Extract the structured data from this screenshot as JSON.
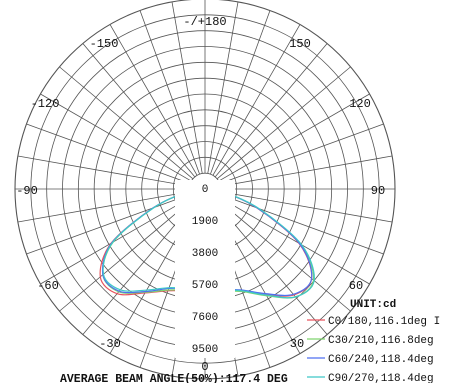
{
  "chart_data": {
    "type": "polar-line",
    "unit_label": "UNIT:cd",
    "angle_labels": [
      "-/+180",
      "-150",
      "150",
      "-120",
      "120",
      "-90",
      "90",
      "-60",
      "60",
      "-30",
      "30",
      "0"
    ],
    "radial_ticks": [
      "0",
      "1900",
      "3800",
      "5700",
      "7600",
      "9500"
    ],
    "radial_max": 11400,
    "footer": "AVERAGE BEAM ANGLE(50%):117.4 DEG",
    "colors": {
      "grid": "#555555",
      "text": "#111111"
    },
    "series": [
      {
        "name": "C0/180,116.1deg I",
        "color": "#e8545e",
        "points": [
          [
            0,
            6050
          ],
          [
            10,
            6200
          ],
          [
            20,
            6500
          ],
          [
            30,
            7200
          ],
          [
            40,
            8200
          ],
          [
            50,
            8200
          ],
          [
            60,
            6500
          ],
          [
            70,
            3300
          ],
          [
            80,
            1100
          ],
          [
            90,
            0
          ],
          [
            -90,
            0
          ],
          [
            -80,
            1100
          ],
          [
            -70,
            3300
          ],
          [
            -60,
            6500
          ],
          [
            -50,
            8350
          ],
          [
            -40,
            8300
          ],
          [
            -30,
            7300
          ],
          [
            -20,
            6500
          ],
          [
            -10,
            6200
          ],
          [
            0,
            6050
          ]
        ]
      },
      {
        "name": "C30/210,116.8deg",
        "color": "#7fd46f",
        "points": [
          [
            0,
            6000
          ],
          [
            10,
            6150
          ],
          [
            20,
            6450
          ],
          [
            30,
            7150
          ],
          [
            40,
            8050
          ],
          [
            50,
            8000
          ],
          [
            60,
            6350
          ],
          [
            70,
            3250
          ],
          [
            80,
            1100
          ],
          [
            90,
            0
          ],
          [
            -90,
            0
          ],
          [
            -80,
            1150
          ],
          [
            -70,
            3400
          ],
          [
            -60,
            6600
          ],
          [
            -50,
            8500
          ],
          [
            -40,
            8450
          ],
          [
            -30,
            7400
          ],
          [
            -20,
            6550
          ],
          [
            -10,
            6200
          ],
          [
            0,
            6000
          ]
        ]
      },
      {
        "name": "C60/240,118.4deg",
        "color": "#4f6ff0",
        "points": [
          [
            0,
            5900
          ],
          [
            10,
            6050
          ],
          [
            20,
            6350
          ],
          [
            30,
            7100
          ],
          [
            40,
            8000
          ],
          [
            50,
            8000
          ],
          [
            60,
            6450
          ],
          [
            70,
            3300
          ],
          [
            80,
            1100
          ],
          [
            90,
            0
          ],
          [
            -90,
            0
          ],
          [
            -80,
            1100
          ],
          [
            -70,
            3350
          ],
          [
            -60,
            6550
          ],
          [
            -50,
            8350
          ],
          [
            -40,
            8250
          ],
          [
            -30,
            7250
          ],
          [
            -20,
            6450
          ],
          [
            -10,
            6100
          ],
          [
            0,
            5900
          ]
        ]
      },
      {
        "name": "C90/270,118.4deg",
        "color": "#3fc8c8",
        "points": [
          [
            0,
            5900
          ],
          [
            10,
            6050
          ],
          [
            20,
            6300
          ],
          [
            30,
            7000
          ],
          [
            40,
            7900
          ],
          [
            50,
            7950
          ],
          [
            60,
            6400
          ],
          [
            70,
            3250
          ],
          [
            80,
            1100
          ],
          [
            90,
            0
          ],
          [
            -90,
            0
          ],
          [
            -80,
            1150
          ],
          [
            -70,
            3450
          ],
          [
            -60,
            6700
          ],
          [
            -50,
            8550
          ],
          [
            -40,
            8450
          ],
          [
            -30,
            7350
          ],
          [
            -20,
            6500
          ],
          [
            -10,
            6150
          ],
          [
            0,
            5900
          ]
        ]
      }
    ]
  }
}
